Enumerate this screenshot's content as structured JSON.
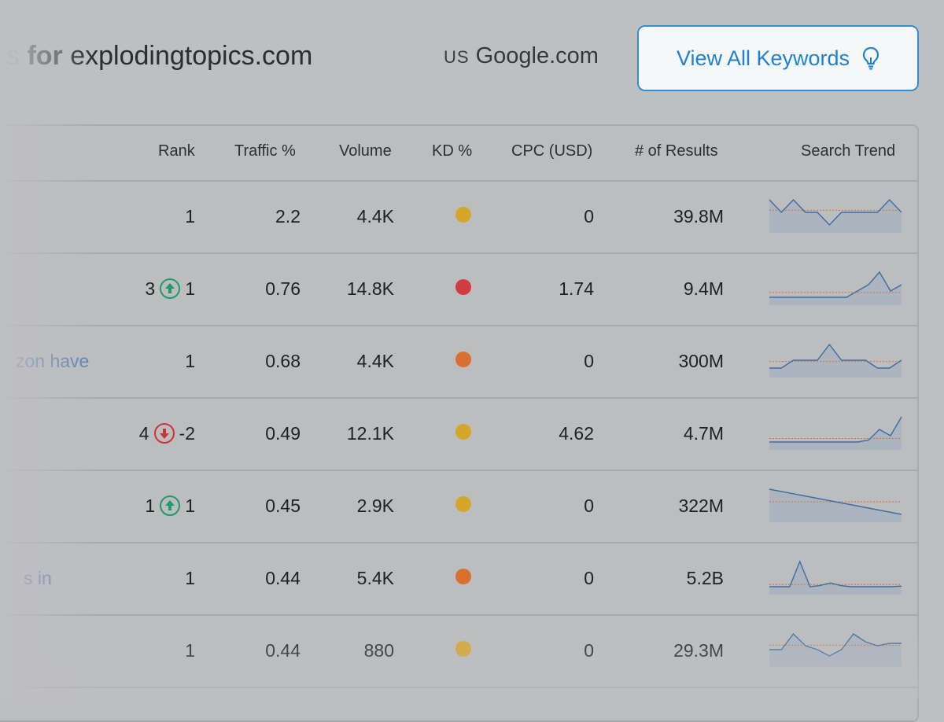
{
  "header": {
    "title_partial": "s",
    "title_bold": " for ",
    "title_domain": "explodingtopics.com",
    "country_code": "US",
    "engine": "Google.com",
    "view_button_label": "View All Keywords",
    "view_button_icon": "lightbulb-icon"
  },
  "columns": [
    "Rank",
    "Traffic %",
    "Volume",
    "KD %",
    "CPC (USD)",
    "# of Results",
    "Search Trend"
  ],
  "rows": [
    {
      "keyword": "",
      "rank": "1",
      "rank_change_dir": "",
      "rank_change": "",
      "traffic": "2.2",
      "volume": "4.4K",
      "kd_color": "#d6a62a",
      "cpc": "0",
      "results": "39.8M",
      "trend": [
        5,
        3,
        5,
        3,
        3,
        1,
        3,
        3,
        3,
        3,
        5,
        3
      ]
    },
    {
      "keyword": "",
      "rank": "3",
      "rank_change_dir": "up",
      "rank_change": "1",
      "traffic": "0.76",
      "volume": "14.8K",
      "kd_color": "#d23b3f",
      "cpc": "1.74",
      "results": "9.4M",
      "trend": [
        1,
        1,
        1,
        1,
        1,
        1,
        1,
        1,
        2,
        3,
        5,
        2,
        3
      ]
    },
    {
      "keyword": "zon have",
      "rank": "1",
      "rank_change_dir": "",
      "rank_change": "",
      "traffic": "0.68",
      "volume": "4.4K",
      "kd_color": "#d9702e",
      "cpc": "0",
      "results": "300M",
      "trend": [
        1,
        1,
        2,
        2,
        2,
        4,
        2,
        2,
        2,
        1,
        1,
        2
      ]
    },
    {
      "keyword": "",
      "rank": "4",
      "rank_change_dir": "down",
      "rank_change": "-2",
      "traffic": "0.49",
      "volume": "12.1K",
      "kd_color": "#d6a62a",
      "cpc": "4.62",
      "results": "4.7M",
      "trend": [
        1,
        1,
        1,
        1,
        1,
        1,
        1,
        1,
        1,
        1.3,
        3,
        2,
        5
      ]
    },
    {
      "keyword": "",
      "rank": "1",
      "rank_change_dir": "up",
      "rank_change": "1",
      "traffic": "0.45",
      "volume": "2.9K",
      "kd_color": "#d6a62a",
      "cpc": "0",
      "results": "322M",
      "trend": [
        5,
        4,
        3,
        2,
        1
      ]
    },
    {
      "keyword": "s in",
      "rank": "1",
      "rank_change_dir": "",
      "rank_change": "",
      "traffic": "0.44",
      "volume": "5.4K",
      "kd_color": "#d9702e",
      "cpc": "0",
      "results": "5.2B",
      "trend": [
        1,
        1,
        1,
        5,
        1,
        1.2,
        1.6,
        1.2,
        1,
        1,
        1,
        1,
        1,
        1.1
      ]
    },
    {
      "keyword": "",
      "rank": "1",
      "rank_change_dir": "",
      "rank_change": "",
      "traffic": "0.44",
      "volume": "880",
      "kd_color": "#d6a62a",
      "cpc": "0",
      "results": "29.3M",
      "trend": [
        2,
        2,
        4,
        2.5,
        2,
        1.2,
        2,
        4,
        3,
        2.5,
        2.8,
        2.8
      ]
    }
  ]
}
